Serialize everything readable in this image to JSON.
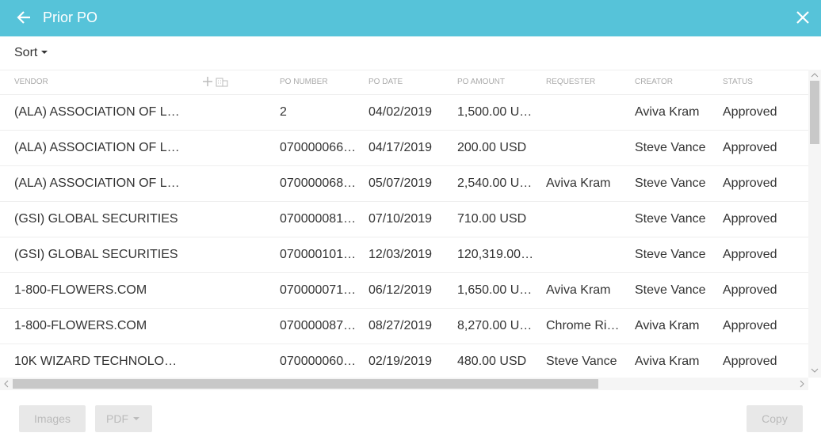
{
  "header": {
    "title": "Prior PO"
  },
  "toolbar": {
    "sort": "Sort"
  },
  "table": {
    "columns": [
      "VENDOR",
      "PO NUMBER",
      "PO DATE",
      "PO AMOUNT",
      "REQUESTER",
      "CREATOR",
      "STATUS"
    ],
    "rows": [
      [
        "(ALA) ASSOCIATION OF L…",
        "2",
        "04/02/2019",
        "1,500.00 U…",
        null,
        "Aviva Kram",
        "Approved"
      ],
      [
        "(ALA) ASSOCIATION OF L…",
        "070000066…",
        "04/17/2019",
        "200.00 USD",
        null,
        "Steve Vance",
        "Approved"
      ],
      [
        "(ALA) ASSOCIATION OF L…",
        "070000068…",
        "05/07/2019",
        "2,540.00 U…",
        "Aviva Kram",
        "Steve Vance",
        "Approved"
      ],
      [
        "(GSI) GLOBAL SECURITIES",
        "070000081…",
        "07/10/2019",
        "710.00 USD",
        null,
        "Steve Vance",
        "Approved"
      ],
      [
        "(GSI) GLOBAL SECURITIES",
        "070000101…",
        "12/03/2019",
        "120,319.00…",
        null,
        "Steve Vance",
        "Approved"
      ],
      [
        "1-800-FLOWERS.COM",
        "070000071…",
        "06/12/2019",
        "1,650.00 U…",
        "Aviva Kram",
        "Steve Vance",
        "Approved"
      ],
      [
        "1-800-FLOWERS.COM",
        "070000087…",
        "08/27/2019",
        "8,270.00 U…",
        "Chrome Ri…",
        "Aviva Kram",
        "Approved"
      ],
      [
        "10K WIZARD TECHNOLO…",
        "070000060…",
        "02/19/2019",
        "480.00 USD",
        "Steve Vance",
        "Aviva Kram",
        "Approved"
      ]
    ]
  },
  "footer": {
    "buttons": [
      "Images",
      "PDF",
      "Copy"
    ]
  }
}
